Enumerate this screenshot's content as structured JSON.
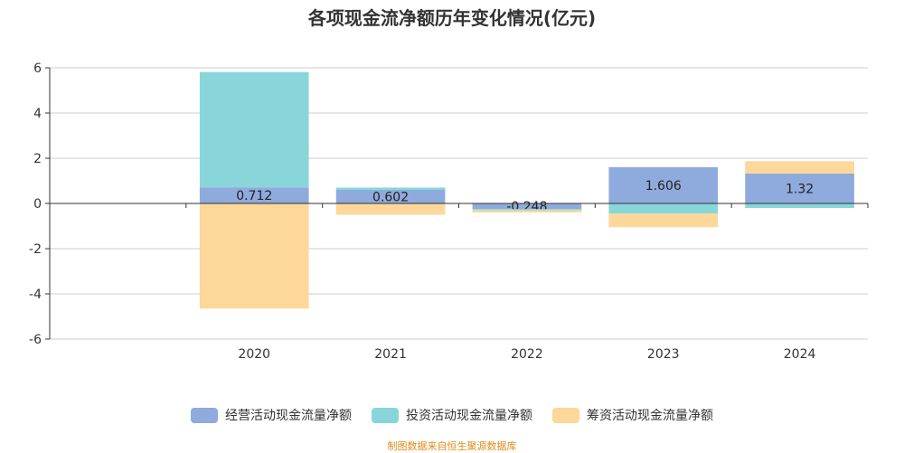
{
  "title": "各项现金流净额历年变化情况(亿元)",
  "footer": "制图数据来自恒生聚源数据库",
  "chart_data": {
    "type": "bar",
    "stacked": true,
    "categories": [
      "2020",
      "2021",
      "2022",
      "2023",
      "2024"
    ],
    "ylim": [
      -6,
      6
    ],
    "yticks": [
      6,
      4,
      2,
      0,
      -2,
      -4,
      -6
    ],
    "grid": true,
    "legend_position": "bottom",
    "series": [
      {
        "name": "经营活动现金流量净额",
        "color": "#8faadc",
        "values": [
          0.712,
          0.602,
          -0.248,
          1.606,
          1.32
        ],
        "labels_shown": true
      },
      {
        "name": "投资活动现金流量净额",
        "color": "#88d6d9",
        "values": [
          5.1,
          0.1,
          -0.05,
          -0.45,
          -0.2
        ],
        "labels_shown": false
      },
      {
        "name": "筹资活动现金流量净额",
        "color": "#fdd89a",
        "values": [
          -4.65,
          -0.5,
          -0.1,
          -0.6,
          0.55
        ],
        "labels_shown": false
      }
    ]
  }
}
